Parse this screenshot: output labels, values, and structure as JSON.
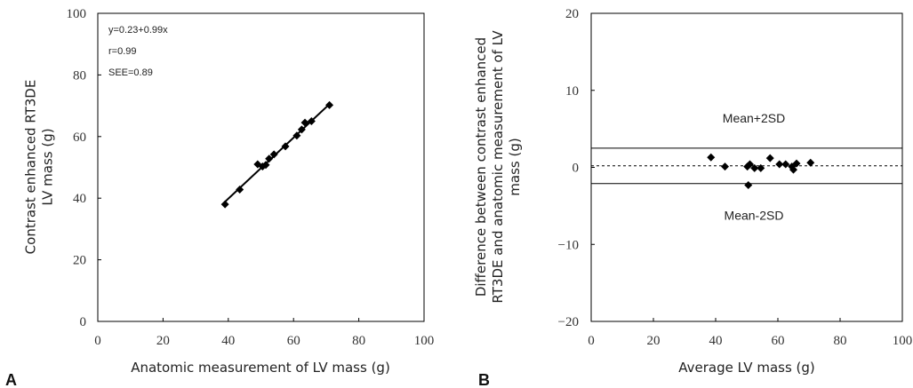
{
  "chart_data": [
    {
      "panel": "A",
      "type": "scatter",
      "xlabel": "Anatomic measurement of LV mass (g)",
      "ylabel_lines": [
        "Contrast enhanced RT3DE",
        "LV mass (g)"
      ],
      "xlim": [
        0,
        100
      ],
      "ylim": [
        0,
        100
      ],
      "xticks": [
        0,
        20,
        40,
        60,
        80,
        100
      ],
      "yticks": [
        0,
        20,
        40,
        60,
        80,
        100
      ],
      "points": [
        [
          39,
          38
        ],
        [
          43.5,
          42.8
        ],
        [
          49,
          51
        ],
        [
          50.5,
          50.3
        ],
        [
          51.5,
          50.8
        ],
        [
          52.5,
          52.8
        ],
        [
          54,
          54.2
        ],
        [
          57.5,
          56.8
        ],
        [
          61,
          60.3
        ],
        [
          62.5,
          62.3
        ],
        [
          63.5,
          64.5
        ],
        [
          65.5,
          65
        ],
        [
          71,
          70.2
        ]
      ],
      "regression": {
        "intercept": 0.23,
        "slope": 0.99,
        "x_range": [
          39,
          71
        ]
      },
      "annotations": [
        "y=0.23+0.99x",
        "r=0.99",
        "SEE=0.89"
      ]
    },
    {
      "panel": "B",
      "type": "scatter",
      "xlabel": "Average LV mass (g)",
      "ylabel_lines": [
        "Difference between contrast enhanced",
        "RT3DE and anatomic measurement of LV",
        "mass (g)"
      ],
      "xlim": [
        0,
        100
      ],
      "ylim": [
        -20,
        20
      ],
      "xticks": [
        0,
        20,
        40,
        60,
        80,
        100
      ],
      "yticks": [
        -20,
        -10,
        0,
        10,
        20
      ],
      "points": [
        [
          38.5,
          1.3
        ],
        [
          43,
          0.1
        ],
        [
          50.2,
          0.1
        ],
        [
          51,
          0.4
        ],
        [
          50.5,
          -2.3
        ],
        [
          52.5,
          -0.1
        ],
        [
          54.5,
          -0.1
        ],
        [
          57.5,
          1.2
        ],
        [
          60.5,
          0.4
        ],
        [
          62.5,
          0.4
        ],
        [
          64.5,
          0.1
        ],
        [
          65,
          -0.3
        ],
        [
          66,
          0.5
        ],
        [
          70.5,
          0.6
        ]
      ],
      "mean_line": 0.2,
      "upper_limit": {
        "value": 2.5,
        "label": "Mean+2SD"
      },
      "lower_limit": {
        "value": -2.1,
        "label": "Mean-2SD"
      }
    }
  ]
}
